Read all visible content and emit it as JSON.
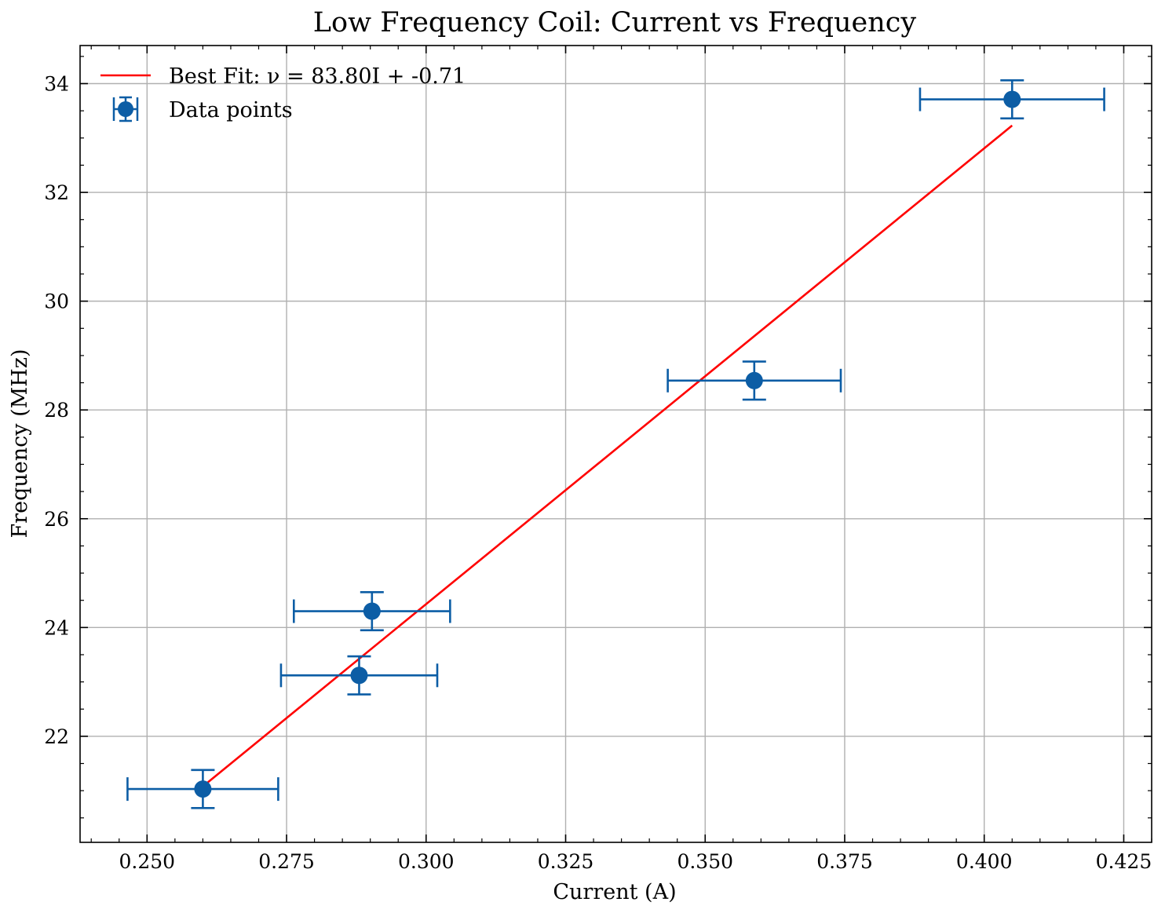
{
  "chart_data": {
    "type": "scatter",
    "title": "Low Frequency Coil: Current vs Frequency",
    "xlabel": "Current (A)",
    "ylabel": "Frequency (MHz)",
    "xlim": [
      0.238,
      0.43
    ],
    "ylim": [
      20.05,
      34.7
    ],
    "xticks": [
      0.25,
      0.275,
      0.3,
      0.325,
      0.35,
      0.375,
      0.4,
      0.425
    ],
    "xtick_labels": [
      "0.250",
      "0.275",
      "0.300",
      "0.325",
      "0.350",
      "0.375",
      "0.400",
      "0.425"
    ],
    "yticks": [
      22,
      24,
      26,
      28,
      30,
      32,
      34
    ],
    "ytick_labels": [
      "22",
      "24",
      "26",
      "28",
      "30",
      "32",
      "34"
    ],
    "grid": true,
    "legend_position": "top-left",
    "series": [
      {
        "name": "Data points",
        "kind": "errorbar",
        "color": "#0C5DA5",
        "points": [
          {
            "x": 0.26,
            "y": 21.03,
            "xerr": 0.0135,
            "yerr": 0.35
          },
          {
            "x": 0.288,
            "y": 23.12,
            "xerr": 0.014,
            "yerr": 0.35
          },
          {
            "x": 0.2903,
            "y": 24.3,
            "xerr": 0.014,
            "yerr": 0.35
          },
          {
            "x": 0.3588,
            "y": 28.54,
            "xerr": 0.0155,
            "yerr": 0.35
          },
          {
            "x": 0.405,
            "y": 33.71,
            "xerr": 0.0165,
            "yerr": 0.35
          }
        ]
      },
      {
        "name": "Best Fit: ν = 83.80I + -0.71",
        "kind": "line",
        "color": "#FF0000",
        "slope": 83.8,
        "intercept": -0.71,
        "x_range": [
          0.26,
          0.405
        ]
      }
    ],
    "legend": [
      {
        "label": "Best Fit: ν = 83.80I + -0.71",
        "marker": "line",
        "color": "#FF0000"
      },
      {
        "label": "Data points",
        "marker": "errorbar",
        "color": "#0C5DA5"
      }
    ]
  }
}
